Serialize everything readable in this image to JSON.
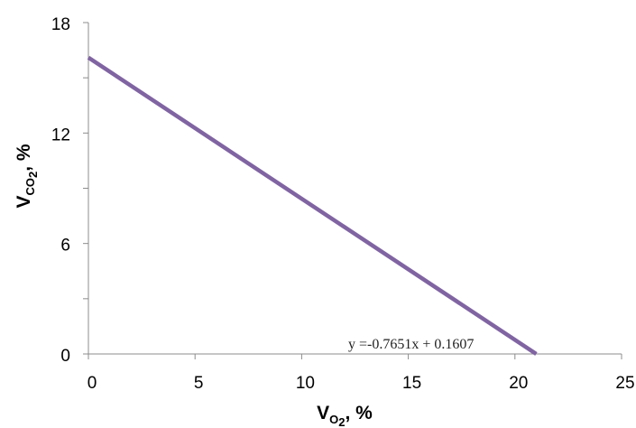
{
  "chart_data": {
    "type": "line",
    "xlabel_main": "V",
    "xlabel_sub": "O",
    "xlabel_sub_small": "2",
    "xlabel_unit": ", %",
    "ylabel_main": "V",
    "ylabel_sub": "CO",
    "ylabel_sub_small": "2",
    "ylabel_unit": ", %",
    "xlim": [
      0,
      25
    ],
    "ylim": [
      0,
      18
    ],
    "x_ticks": [
      0,
      5,
      10,
      15,
      20,
      25
    ],
    "x_tick_labels": [
      "0",
      "5",
      "10",
      "15",
      "20",
      "25"
    ],
    "y_ticks": [
      0,
      6,
      12,
      18
    ],
    "y_tick_labels": [
      "0",
      "6",
      "12",
      "18"
    ],
    "y_minor_ticks": [
      3,
      9,
      15
    ],
    "series": [
      {
        "x": [
          0,
          21
        ],
        "y": [
          16.1,
          0
        ],
        "color": "#8064a2"
      }
    ],
    "trendline_equation": "y =-0.7651x + 0.1607",
    "grid": false
  }
}
